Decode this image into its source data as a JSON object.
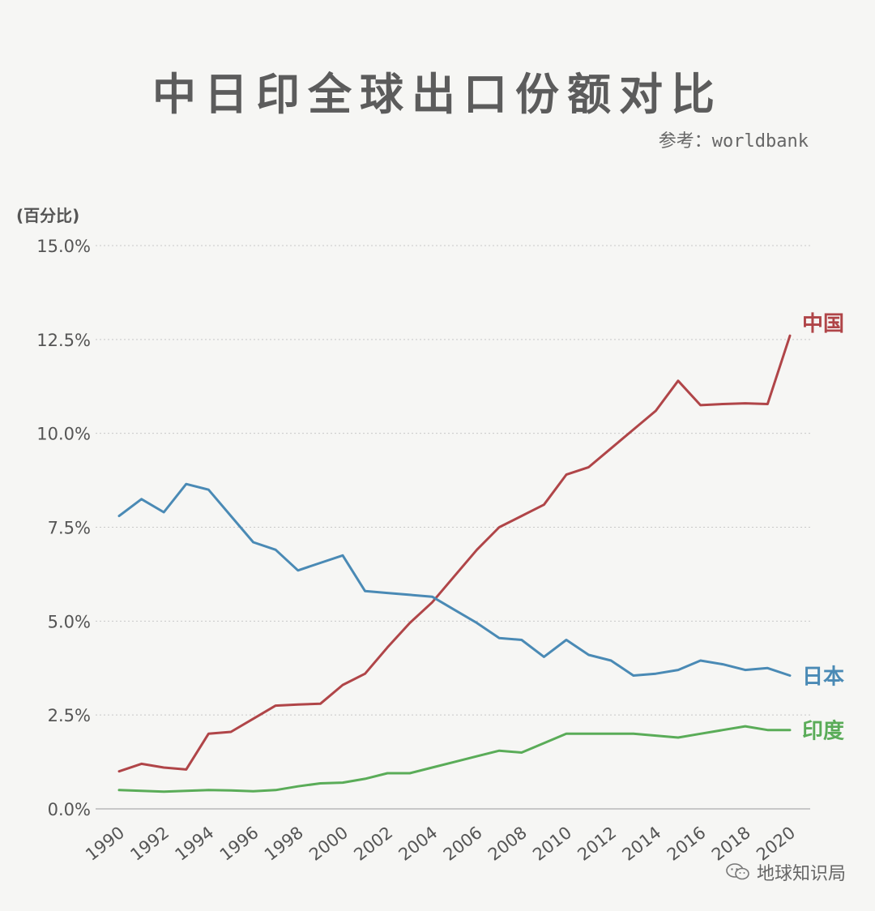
{
  "title": "中日印全球出口份额对比",
  "source": "参考：worldbank",
  "watermark": "地球知识局",
  "colors": {
    "china": "#b04548",
    "japan": "#4a8ab5",
    "india": "#5aac58",
    "grid": "#c8c8c8",
    "axis": "#555555"
  },
  "chart_data": {
    "type": "line",
    "title": "中日印全球出口份额对比",
    "ylabel": "(百分比)",
    "xlabel": "",
    "ylim": [
      0,
      15
    ],
    "xlim": [
      1990,
      2020
    ],
    "yticks": [
      "0.0%",
      "2.5%",
      "5.0%",
      "7.5%",
      "10.0%",
      "12.5%",
      "15.0%"
    ],
    "ytick_values": [
      0,
      2.5,
      5,
      7.5,
      10,
      12.5,
      15
    ],
    "xticks": [
      "1990",
      "1992",
      "1994",
      "1996",
      "1998",
      "2000",
      "2002",
      "2004",
      "2006",
      "2008",
      "2010",
      "2012",
      "2014",
      "2016",
      "2018",
      "2020"
    ],
    "x": [
      1990,
      1991,
      1992,
      1993,
      1994,
      1995,
      1996,
      1997,
      1998,
      1999,
      2000,
      2001,
      2002,
      2003,
      2004,
      2005,
      2006,
      2007,
      2008,
      2009,
      2010,
      2011,
      2012,
      2013,
      2014,
      2015,
      2016,
      2017,
      2018,
      2019,
      2020
    ],
    "series": [
      {
        "name": "中国",
        "key": "china",
        "values": [
          1.0,
          1.2,
          1.1,
          1.05,
          2.0,
          2.05,
          2.4,
          2.75,
          2.78,
          2.8,
          3.3,
          3.6,
          4.3,
          4.95,
          5.5,
          6.2,
          6.9,
          7.5,
          7.8,
          8.1,
          8.9,
          9.1,
          9.6,
          10.1,
          10.6,
          11.4,
          10.75,
          10.78,
          10.8,
          10.78,
          12.6
        ]
      },
      {
        "name": "日本",
        "key": "japan",
        "values": [
          7.8,
          8.25,
          7.9,
          8.65,
          8.5,
          7.8,
          7.1,
          6.9,
          6.35,
          6.55,
          6.75,
          5.8,
          5.75,
          5.7,
          5.65,
          5.3,
          4.95,
          4.55,
          4.5,
          4.05,
          4.5,
          4.1,
          3.95,
          3.55,
          3.6,
          3.7,
          3.95,
          3.85,
          3.7,
          3.75,
          3.55
        ]
      },
      {
        "name": "印度",
        "key": "india",
        "values": [
          0.5,
          0.48,
          0.46,
          0.48,
          0.5,
          0.49,
          0.47,
          0.5,
          0.6,
          0.68,
          0.7,
          0.8,
          0.95,
          0.95,
          1.1,
          1.25,
          1.4,
          1.55,
          1.5,
          1.75,
          2.0,
          2.0,
          2.0,
          2.0,
          1.95,
          1.9,
          2.0,
          2.1,
          2.2,
          2.1,
          2.1
        ]
      }
    ]
  }
}
